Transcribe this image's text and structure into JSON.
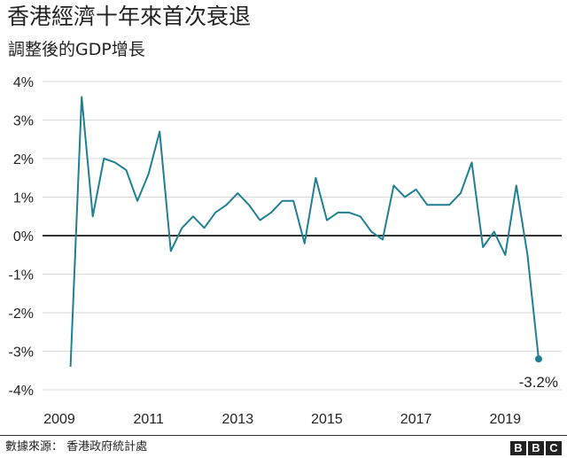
{
  "title": "香港經濟十年來首次衰退",
  "subtitle": "調整後的GDP增長",
  "source": "數據來源： 香港政府統計處",
  "logo": [
    "B",
    "B",
    "C"
  ],
  "colors": {
    "line": "#1f7f93",
    "zero_line": "#333333",
    "grid": "#d9d9d9",
    "label": "#1f7f93"
  },
  "chart_data": {
    "type": "line",
    "title": "香港經濟十年來首次衰退",
    "subtitle": "調整後的GDP增長",
    "xlabel": "",
    "ylabel": "",
    "x_tick_labels": [
      "2009",
      "2011",
      "2013",
      "2015",
      "2017",
      "2019"
    ],
    "y_tick_labels": [
      "4%",
      "3%",
      "2%",
      "1%",
      "0%",
      "-1%",
      "-2%",
      "-3%",
      "-4%"
    ],
    "y_ticks": [
      4,
      3,
      2,
      1,
      0,
      -1,
      -2,
      -3,
      -4
    ],
    "ylim": [
      -4,
      4
    ],
    "xlim": [
      2009,
      2019.75
    ],
    "grid": true,
    "series": [
      {
        "x": [
          2009.25,
          2009.5,
          2009.75,
          2010.0,
          2010.25,
          2010.5,
          2010.75,
          2011.0,
          2011.25,
          2011.5,
          2011.75,
          2012.0,
          2012.25,
          2012.5,
          2012.75,
          2013.0,
          2013.25,
          2013.5,
          2013.75,
          2014.0,
          2014.25,
          2014.5,
          2014.75,
          2015.0,
          2015.25,
          2015.5,
          2015.75,
          2016.0,
          2016.25,
          2016.5,
          2016.75,
          2017.0,
          2017.25,
          2017.5,
          2017.75,
          2018.0,
          2018.25,
          2018.5,
          2018.75,
          2019.0,
          2019.25,
          2019.5,
          2019.75
        ],
        "values": [
          -3.4,
          3.6,
          0.5,
          2.0,
          1.9,
          1.7,
          0.9,
          1.6,
          2.7,
          -0.4,
          0.2,
          0.5,
          0.2,
          0.6,
          0.8,
          1.1,
          0.8,
          0.4,
          0.6,
          0.9,
          0.9,
          -0.2,
          1.5,
          0.4,
          0.6,
          0.6,
          0.5,
          0.1,
          -0.1,
          1.3,
          1.0,
          1.2,
          0.8,
          0.8,
          0.8,
          1.1,
          1.9,
          -0.3,
          0.1,
          -0.5,
          1.3,
          -0.5,
          -3.2
        ]
      }
    ],
    "annotations": [
      {
        "x": 2019.75,
        "y": -3.2,
        "text": "-3.2%"
      }
    ]
  }
}
